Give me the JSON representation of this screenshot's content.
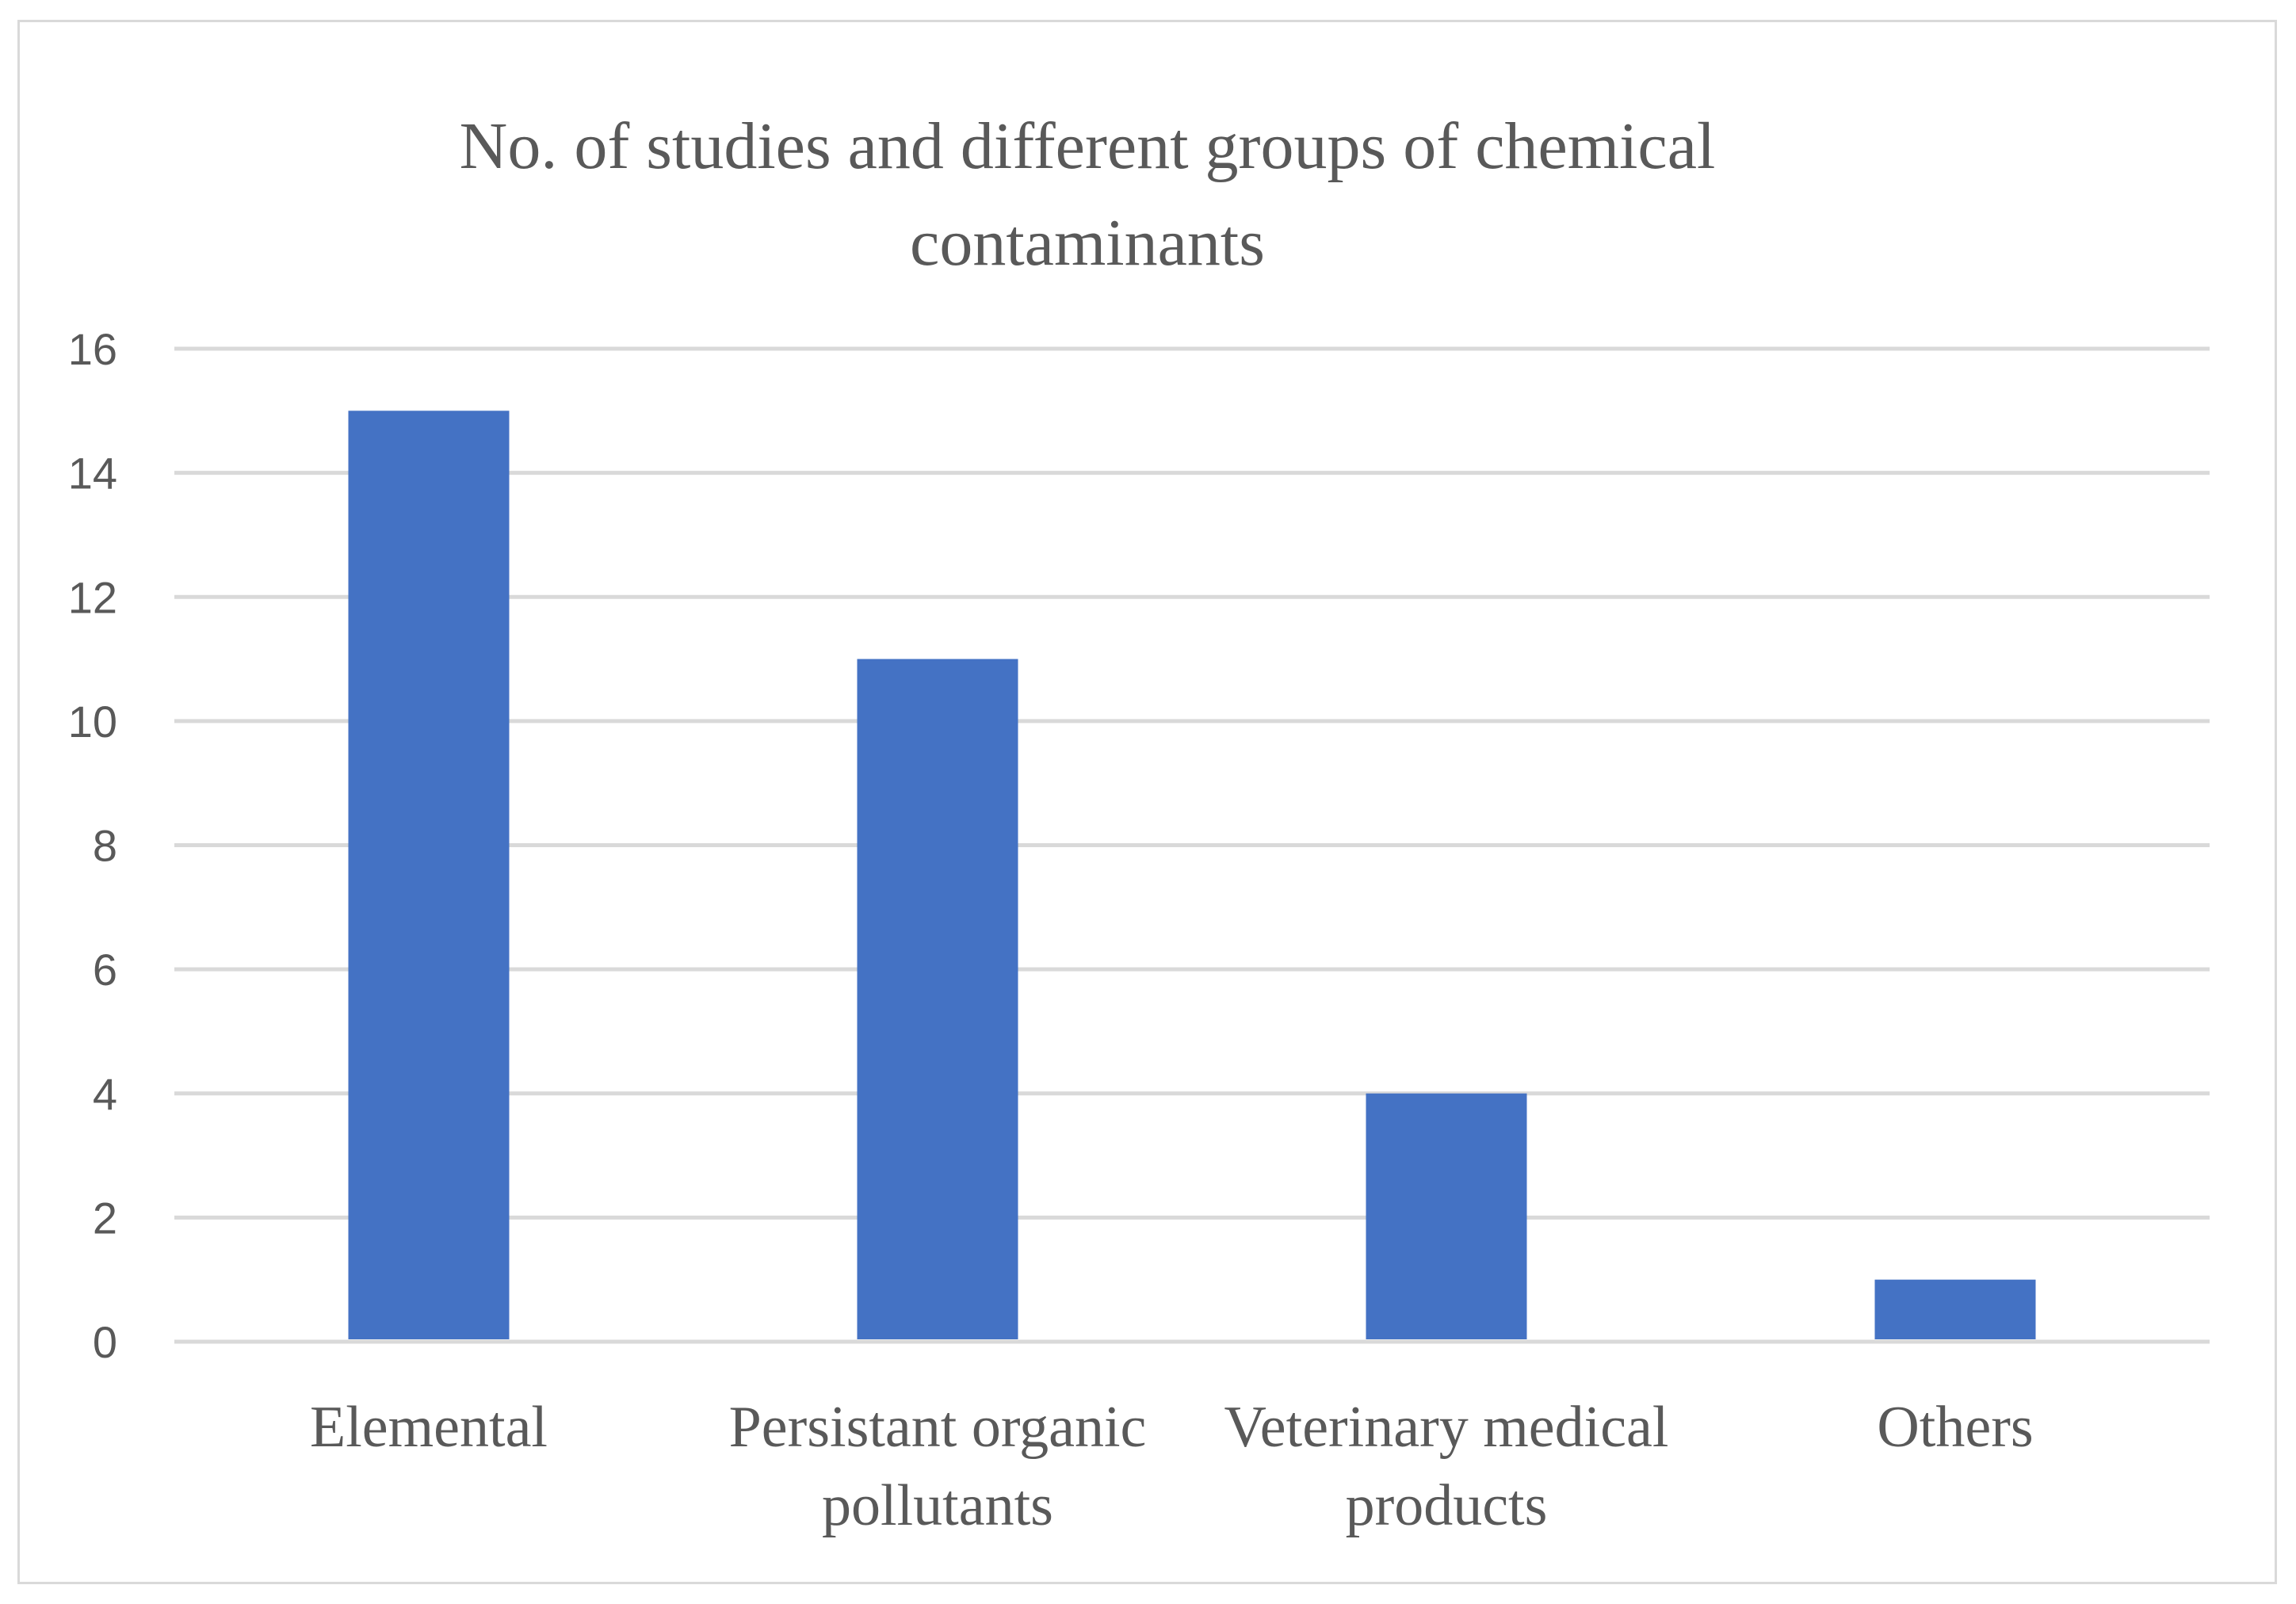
{
  "chart_data": {
    "type": "bar",
    "title_lines": [
      "No. of studies and different groups of chemical",
      "contaminants"
    ],
    "categories": [
      [
        "Elemental"
      ],
      [
        "Persistant organic",
        "pollutants"
      ],
      [
        "Veterinary medical",
        "products"
      ],
      [
        "Others"
      ]
    ],
    "values": [
      15,
      11,
      4,
      1
    ],
    "ylim": [
      0,
      16
    ],
    "yticks": [
      0,
      2,
      4,
      6,
      8,
      10,
      12,
      14,
      16
    ],
    "xlabel": "",
    "ylabel": "",
    "grid": true,
    "legend": "none",
    "colors": {
      "bar": "#4472C4",
      "grid": "#d9d9d9",
      "text": "#595959"
    }
  }
}
